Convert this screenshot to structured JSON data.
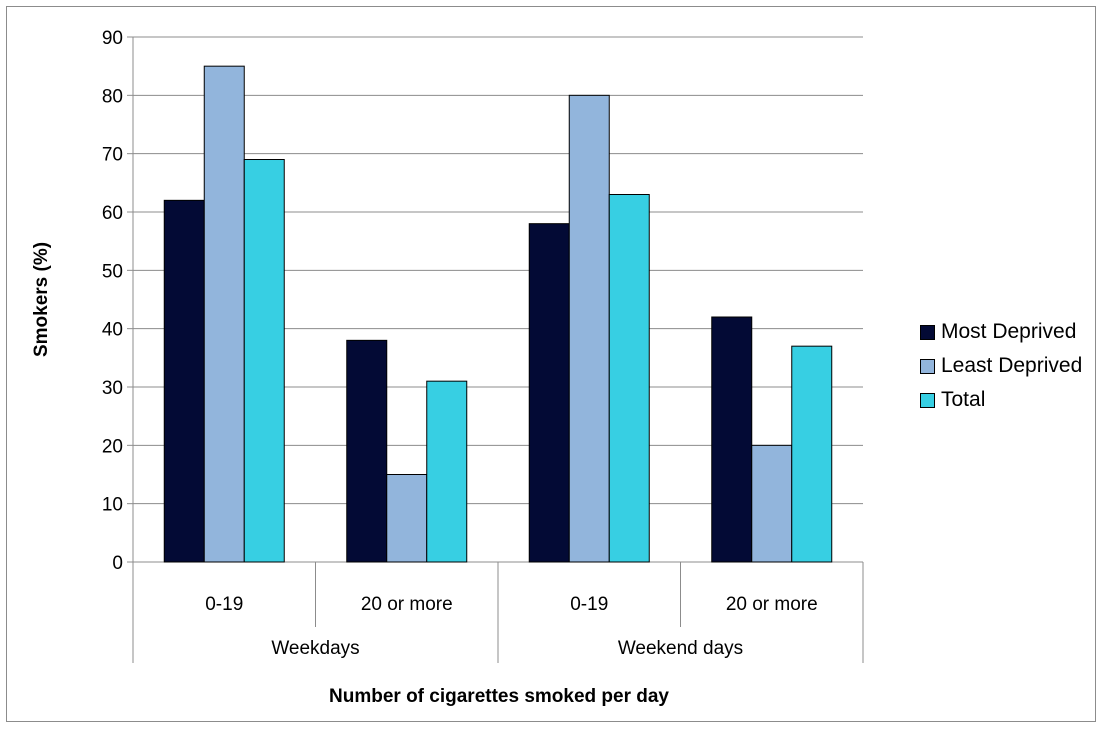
{
  "chart_data": {
    "type": "bar",
    "groups": [
      {
        "label": "Weekdays",
        "categories": [
          "0-19",
          "20 or more"
        ]
      },
      {
        "label": "Weekend days",
        "categories": [
          "0-19",
          "20 or more"
        ]
      }
    ],
    "categories": [
      "0-19",
      "20 or more",
      "0-19",
      "20 or more"
    ],
    "series": [
      {
        "name": "Most Deprived",
        "color": "#030A35",
        "values": [
          62,
          38,
          58,
          42
        ]
      },
      {
        "name": "Least Deprived",
        "color": "#92B5DC",
        "values": [
          85,
          15,
          80,
          20
        ]
      },
      {
        "name": "Total",
        "color": "#37CFE3",
        "values": [
          69,
          31,
          63,
          37
        ]
      }
    ],
    "ylabel": "Smokers (%)",
    "xlabel": "Number of cigarettes smoked per day",
    "ylim": [
      0,
      90
    ],
    "yticks": [
      "0",
      "10",
      "20",
      "30",
      "40",
      "50",
      "60",
      "70",
      "80",
      "90"
    ],
    "grid": true,
    "legend_position": "right"
  }
}
